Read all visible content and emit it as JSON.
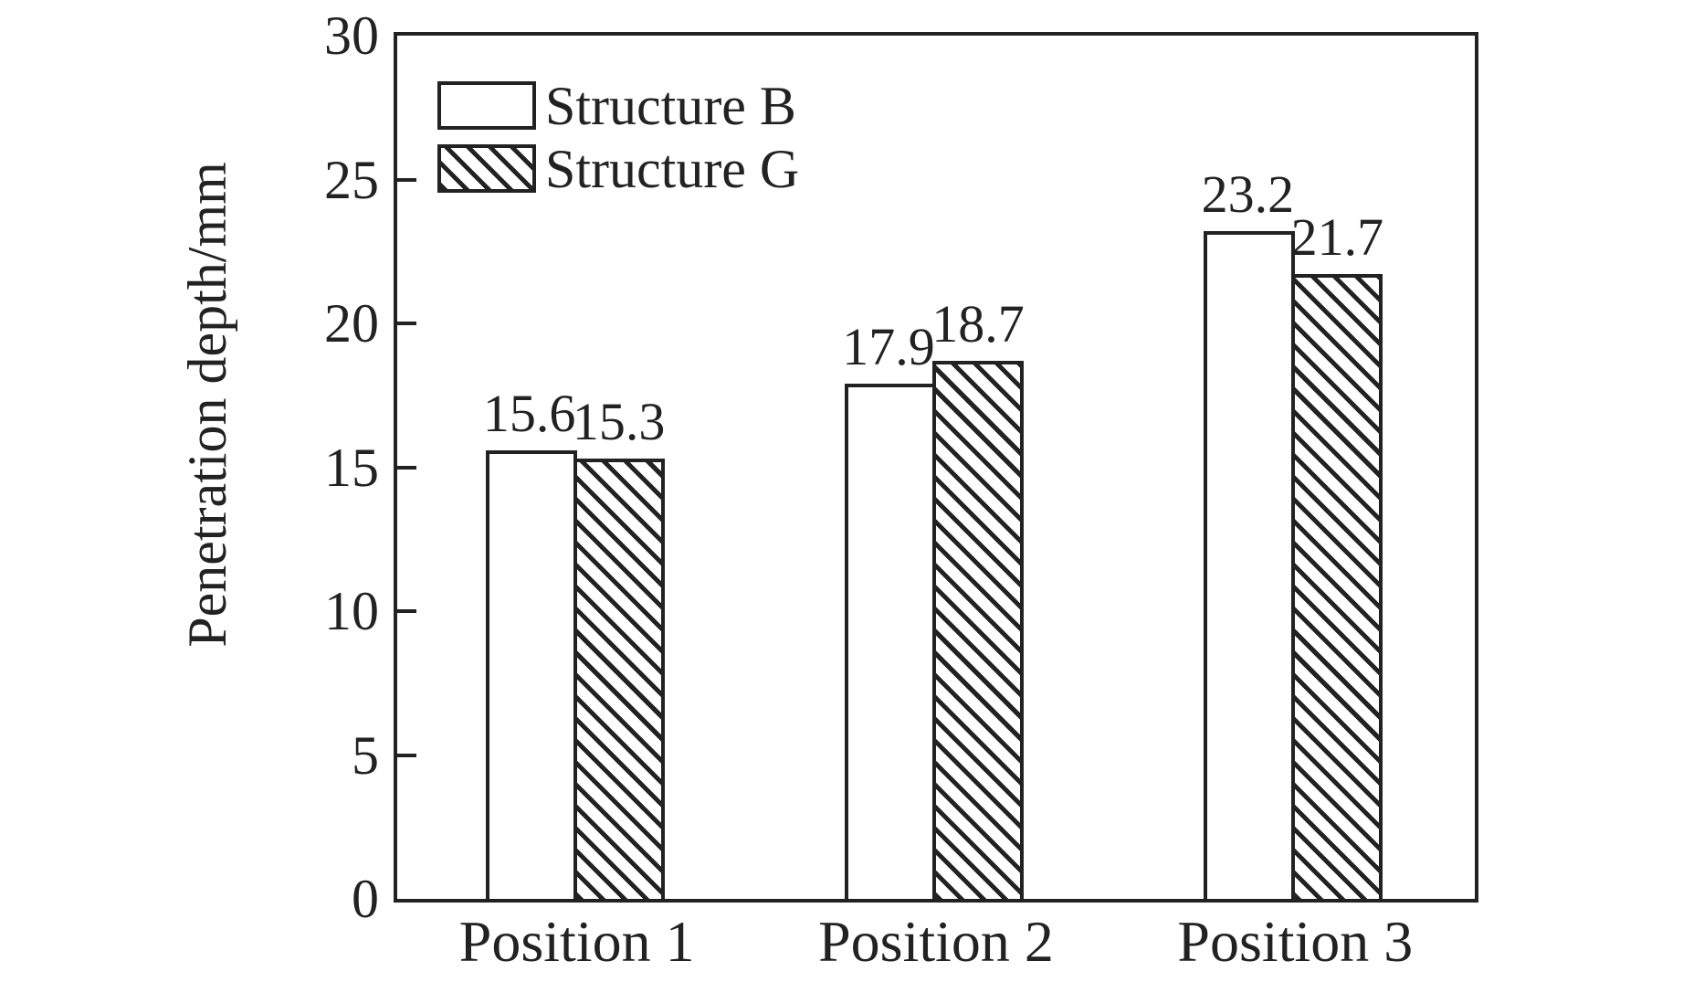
{
  "chart_data": {
    "type": "bar",
    "categories": [
      "Position 1",
      "Position 2",
      "Position 3"
    ],
    "series": [
      {
        "name": "Structure B",
        "fill": "plain",
        "values": [
          15.6,
          17.9,
          23.2
        ]
      },
      {
        "name": "Structure G",
        "fill": "hatch",
        "values": [
          15.3,
          18.7,
          21.7
        ]
      }
    ],
    "value_labels": {
      "structure_b": [
        "15.6",
        "17.9",
        "23.2"
      ],
      "structure_g": [
        "15.3",
        "18.7",
        "21.7"
      ]
    },
    "title": "",
    "xlabel": "",
    "ylabel": "Penetration depth/mm",
    "ylim": [
      0,
      30
    ],
    "yticks": [
      0,
      5,
      10,
      15,
      20,
      25,
      30
    ],
    "grid": false,
    "legend_position": "upper-left-inside",
    "colors": {
      "line": "#222222",
      "bar_fill": "#ffffff",
      "background": "#ffffff"
    }
  }
}
